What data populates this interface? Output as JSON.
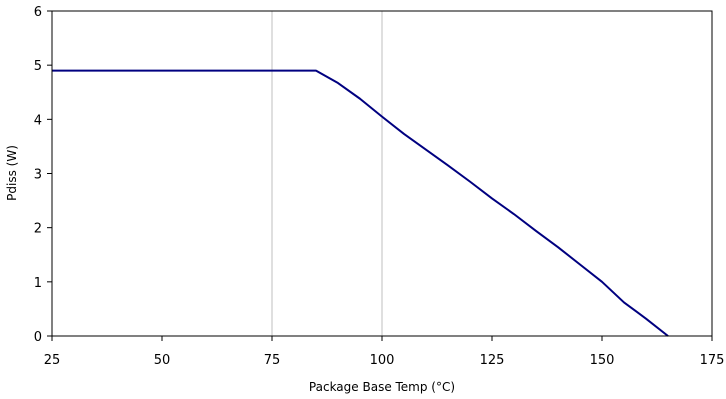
{
  "chart_data": {
    "type": "line",
    "title": "",
    "xlabel": "Package Base Temp (°C)",
    "ylabel": "Pdiss (W)",
    "xlim": [
      25,
      175
    ],
    "ylim": [
      0,
      6
    ],
    "xticks": [
      25,
      50,
      75,
      100,
      125,
      150,
      175
    ],
    "yticks": [
      0,
      1,
      2,
      3,
      4,
      5,
      6
    ],
    "grid": {
      "vertical": [
        75,
        100
      ],
      "horizontal": false
    },
    "series": [
      {
        "color": "#000080",
        "x": [
          25,
          85,
          90,
          95,
          100,
          105,
          110,
          115,
          120,
          125,
          130,
          135,
          140,
          145,
          150,
          155,
          160,
          165
        ],
        "y": [
          4.9,
          4.9,
          4.67,
          4.38,
          4.05,
          3.73,
          3.44,
          3.15,
          2.85,
          2.54,
          2.25,
          1.94,
          1.64,
          1.32,
          1.0,
          0.62,
          0.32,
          0.0
        ]
      }
    ]
  }
}
